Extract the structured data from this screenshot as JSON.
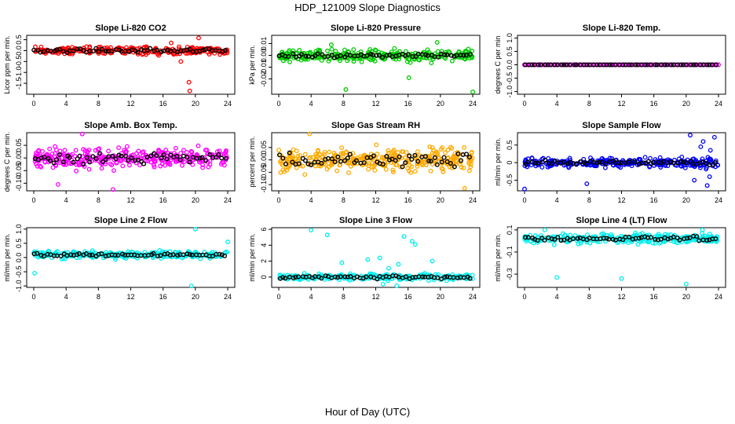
{
  "figure": {
    "title": "HDP_121009  Slope Diagnostics",
    "xlabel": "Hour of Day (UTC)"
  },
  "chart_data": [
    {
      "type": "scatter",
      "title": "Slope Li-820 CO2",
      "ylabel": "Licor ppm per min.",
      "xlim": [
        0,
        24
      ],
      "ylim": [
        -2.0,
        0.7
      ],
      "xticks": [
        0,
        4,
        8,
        12,
        16,
        20,
        24
      ],
      "yticks": [
        -1.5,
        -1.0,
        -0.5,
        0.0,
        0.5
      ],
      "ytick_labels": [
        "-1.5",
        "-1.0",
        "-0.5",
        "0.0",
        "0.5"
      ],
      "series_color": "#ff0000",
      "mean_color": "#000000",
      "noise": {
        "center": 0.0,
        "spread": 0.17,
        "count": 270,
        "mean_spread": 0.08,
        "mean_count": 60
      },
      "outliers": [
        [
          19.2,
          -1.45
        ],
        [
          19.3,
          -1.85
        ],
        [
          20.4,
          0.58
        ],
        [
          18.2,
          -0.5
        ],
        [
          17.0,
          0.35
        ]
      ]
    },
    {
      "type": "scatter",
      "title": "Slope Li-820 Pressure",
      "ylabel": "kPa per min.",
      "xlim": [
        0,
        24
      ],
      "ylim": [
        -0.033,
        0.017
      ],
      "xticks": [
        0,
        4,
        8,
        12,
        16,
        20,
        24
      ],
      "yticks": [
        -0.02,
        -0.01,
        0.0,
        0.01
      ],
      "ytick_labels": [
        "-0.02",
        "-0.01",
        "0.00",
        "0.01"
      ],
      "series_color": "#00cc00",
      "mean_color": "#000000",
      "noise": {
        "center": 0.0,
        "spread": 0.0045,
        "count": 300,
        "mean_spread": 0.002,
        "mean_count": 60
      },
      "outliers": [
        [
          8.3,
          -0.029
        ],
        [
          24.0,
          -0.031
        ],
        [
          6.5,
          0.009
        ],
        [
          16.1,
          -0.019
        ],
        [
          19.6,
          0.011
        ]
      ]
    },
    {
      "type": "scatter",
      "title": "Slope Li-820 Temp.",
      "ylabel": "degrees C per min",
      "xlim": [
        0,
        24
      ],
      "ylim": [
        -1.1,
        1.1
      ],
      "xticks": [
        0,
        4,
        8,
        12,
        16,
        20,
        24
      ],
      "yticks": [
        -1.0,
        -0.5,
        0.0,
        0.5,
        1.0
      ],
      "ytick_labels": [
        "-1.0",
        "-0.5",
        "0.0",
        "0.5",
        "1.0"
      ],
      "series_color": "#dd00dd",
      "mean_color": "#000000",
      "noise": {
        "center": 0.0,
        "spread": 0.0,
        "count": 100,
        "mean_spread": 0.0,
        "mean_count": 60
      },
      "outliers": []
    },
    {
      "type": "scatter",
      "title": "Slope Amb. Box Temp.",
      "ylabel": "degrees C per min.",
      "xlim": [
        0,
        24
      ],
      "ylim": [
        -0.13,
        0.1
      ],
      "xticks": [
        0,
        4,
        8,
        12,
        16,
        20,
        24
      ],
      "yticks": [
        -0.1,
        -0.05,
        0.0,
        0.05
      ],
      "ytick_labels": [
        "-0.10",
        "-0.05",
        "0.00",
        "0.05"
      ],
      "series_color": "#ff00ff",
      "mean_color": "#000000",
      "noise": {
        "center": 0.0,
        "spread": 0.035,
        "count": 320,
        "mean_spread": 0.02,
        "mean_count": 60
      },
      "outliers": [
        [
          6.0,
          0.095
        ],
        [
          9.8,
          -0.125
        ],
        [
          3.0,
          -0.105
        ]
      ]
    },
    {
      "type": "scatter",
      "title": "Slope Gas Stream RH",
      "ylabel": "percent per min.",
      "xlim": [
        0,
        24
      ],
      "ylim": [
        -0.125,
        0.11
      ],
      "xticks": [
        0,
        4,
        8,
        12,
        16,
        20,
        24
      ],
      "yticks": [
        -0.1,
        -0.05,
        0.0,
        0.05
      ],
      "ytick_labels": [
        "-0.10",
        "-0.05",
        "0.00",
        "0.05"
      ],
      "series_color": "#ffaa00",
      "mean_color": "#000000",
      "noise": {
        "center": 0.0,
        "spread": 0.045,
        "count": 340,
        "mean_spread": 0.025,
        "mean_count": 60
      },
      "outliers": [
        [
          3.8,
          0.105
        ],
        [
          23.0,
          -0.115
        ]
      ]
    },
    {
      "type": "scatter",
      "title": "Slope Sample Flow",
      "ylabel": "ml/min per min.",
      "xlim": [
        0,
        24
      ],
      "ylim": [
        -0.8,
        0.85
      ],
      "xticks": [
        0,
        4,
        8,
        12,
        16,
        20,
        24
      ],
      "yticks": [
        -0.5,
        0.0,
        0.5
      ],
      "ytick_labels": [
        "-0.5",
        "0",
        "0.5"
      ],
      "series_color": "#0000ff",
      "mean_color": "#000000",
      "noise": {
        "center": 0.0,
        "spread": 0.12,
        "count": 300,
        "mean_spread": 0.05,
        "mean_count": 60
      },
      "outliers": [
        [
          0.0,
          -0.75
        ],
        [
          7.7,
          -0.6
        ],
        [
          20.5,
          0.78
        ],
        [
          22.1,
          0.6
        ],
        [
          23.5,
          0.72
        ],
        [
          21.0,
          -0.5
        ],
        [
          22.6,
          -0.65
        ],
        [
          22.9,
          -0.4
        ],
        [
          21.8,
          0.45
        ],
        [
          23.0,
          0.35
        ]
      ]
    },
    {
      "type": "scatter",
      "title": "Slope Line 2 Flow",
      "ylabel": "ml/min per min.",
      "xlim": [
        0,
        24
      ],
      "ylim": [
        -1.05,
        1.05
      ],
      "xticks": [
        0,
        4,
        8,
        12,
        16,
        20,
        24
      ],
      "yticks": [
        -1.0,
        -0.5,
        0.0,
        0.5,
        1.0
      ],
      "ytick_labels": [
        "-1.0",
        "-0.5",
        "0.0",
        "0.5",
        "1.0"
      ],
      "series_color": "#00eeee",
      "mean_color": "#000000",
      "noise": {
        "center": 0.1,
        "spread": 0.12,
        "count": 280,
        "mean_spread": 0.05,
        "mean_count": 60
      },
      "outliers": [
        [
          0.1,
          -0.55
        ],
        [
          19.5,
          -1.0
        ],
        [
          20.0,
          1.0
        ],
        [
          24.0,
          0.55
        ]
      ]
    },
    {
      "type": "scatter",
      "title": "Slope Line 3 Flow",
      "ylabel": "ml/min per min.",
      "xlim": [
        0,
        24
      ],
      "ylim": [
        -1.3,
        6.2
      ],
      "xticks": [
        0,
        4,
        8,
        12,
        16,
        20,
        24
      ],
      "yticks": [
        0,
        2,
        4,
        6
      ],
      "ytick_labels": [
        "0",
        "2",
        "4",
        "6"
      ],
      "series_color": "#00eeee",
      "mean_color": "#000000",
      "noise": {
        "center": 0.0,
        "spread": 0.35,
        "count": 260,
        "mean_spread": 0.2,
        "mean_count": 60
      },
      "outliers": [
        [
          4.0,
          5.9
        ],
        [
          6.0,
          5.3
        ],
        [
          7.8,
          1.8
        ],
        [
          11.0,
          2.2
        ],
        [
          12.5,
          2.4
        ],
        [
          13.6,
          1.1
        ],
        [
          14.8,
          1.6
        ],
        [
          15.5,
          5.1
        ],
        [
          16.5,
          4.5
        ],
        [
          16.9,
          4.1
        ],
        [
          19.0,
          2.0
        ],
        [
          14.6,
          -1.1
        ],
        [
          12.9,
          -0.9
        ]
      ]
    },
    {
      "type": "scatter",
      "title": "Slope Line 4 (LT) Flow",
      "ylabel": "ml/min per min.",
      "xlim": [
        0,
        24
      ],
      "ylim": [
        -0.42,
        0.12
      ],
      "xticks": [
        0,
        4,
        8,
        12,
        16,
        20,
        24
      ],
      "yticks": [
        -0.3,
        -0.1,
        0.1
      ],
      "ytick_labels": [
        "-0.3",
        "-0.1",
        "0.1"
      ],
      "series_color": "#00eeee",
      "mean_color": "#000000",
      "noise": {
        "center": 0.02,
        "spread": 0.04,
        "count": 280,
        "mean_spread": 0.02,
        "mean_count": 60
      },
      "outliers": [
        [
          2.5,
          0.1
        ],
        [
          4.0,
          -0.33
        ],
        [
          12.0,
          -0.34
        ],
        [
          20.0,
          -0.39
        ],
        [
          22.0,
          0.1
        ]
      ]
    }
  ]
}
